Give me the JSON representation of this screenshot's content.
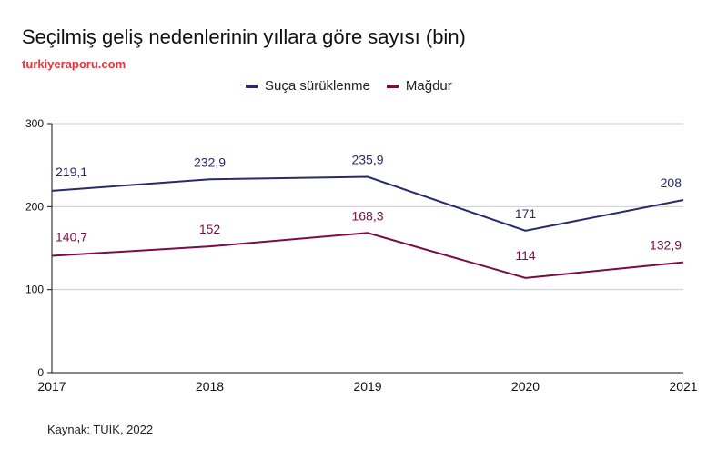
{
  "title": "Seçilmiş geliş nedenlerinin yıllara göre sayısı (bin)",
  "subtitle": "turkiyeraporu.com",
  "source": "Kaynak: TÜİK, 2022",
  "chart_data": {
    "type": "line",
    "title": "Seçilmiş geliş nedenlerinin yıllara göre sayısı (bin)",
    "x": [
      "2017",
      "2018",
      "2019",
      "2020",
      "2021"
    ],
    "series": [
      {
        "name": "Suça sürüklenme",
        "color": "#272c69",
        "values": [
          219.1,
          232.9,
          235.9,
          171,
          208
        ],
        "labels": [
          "219,1",
          "232,9",
          "235,9",
          "171",
          "208"
        ]
      },
      {
        "name": "Mağdur",
        "color": "#7b0c45",
        "values": [
          140.7,
          152,
          168.3,
          114,
          132.9
        ],
        "labels": [
          "140,7",
          "152",
          "168,3",
          "114",
          "132,9"
        ]
      }
    ],
    "yticks": [
      "0",
      "100",
      "200",
      "300"
    ],
    "ylim": [
      0,
      300
    ],
    "grid": true,
    "legend": "top-center"
  }
}
